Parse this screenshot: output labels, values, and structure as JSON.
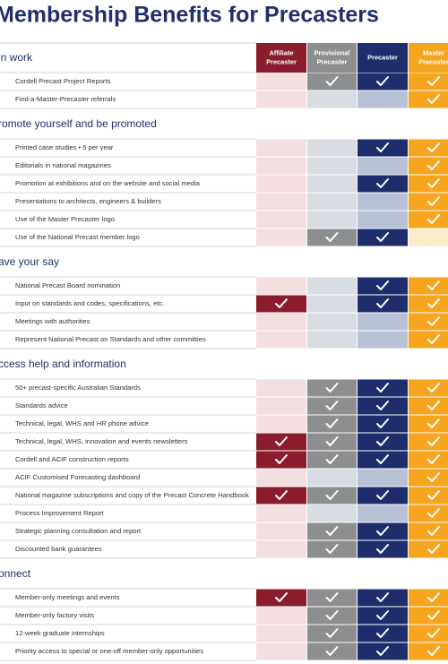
{
  "header": {
    "title": "Membership Benefits for Precasters"
  },
  "columns": [
    [
      "Affiliate",
      "Precaster"
    ],
    [
      "Provisional",
      "Precaster"
    ],
    [
      "Precaster"
    ],
    [
      "Master",
      "Precaster"
    ]
  ],
  "sections": [
    {
      "title": "in work",
      "rows": [
        {
          "label": "Cordell Precast Project Reports",
          "checks": [
            false,
            true,
            true,
            true
          ]
        },
        {
          "label": "Find-a-Master-Precaster referrals",
          "checks": [
            false,
            false,
            false,
            true
          ]
        }
      ]
    },
    {
      "title": "romote yourself and be promoted",
      "rows": [
        {
          "label": "Printed case studies • 5 per year",
          "checks": [
            false,
            false,
            true,
            true
          ]
        },
        {
          "label": "Editorials in national magazines",
          "checks": [
            false,
            false,
            false,
            true
          ]
        },
        {
          "label": "Promotion at exhibitions and on the website and social media",
          "checks": [
            false,
            false,
            true,
            true
          ]
        },
        {
          "label": "Presentations to architects, engineers & builders",
          "checks": [
            false,
            false,
            false,
            true
          ]
        },
        {
          "label": "Use of the Master Precaster logo",
          "checks": [
            false,
            false,
            false,
            true
          ]
        },
        {
          "label": "Use of the National Precast member logo",
          "checks": [
            false,
            true,
            true,
            false
          ]
        }
      ]
    },
    {
      "title": "ave your say",
      "rows": [
        {
          "label": "National Precast Board nomination",
          "checks": [
            false,
            false,
            true,
            true
          ]
        },
        {
          "label": "Input on standards and codes, specifications, etc.",
          "checks": [
            true,
            false,
            true,
            true
          ]
        },
        {
          "label": "Meetings with authorities",
          "checks": [
            false,
            false,
            false,
            true
          ]
        },
        {
          "label": "Represent National Precast on Standards and other committies",
          "checks": [
            false,
            false,
            false,
            true
          ]
        }
      ]
    },
    {
      "title": "ccess help and information",
      "rows": [
        {
          "label": "50+ precast-specific Australian Standards",
          "checks": [
            false,
            true,
            true,
            true
          ]
        },
        {
          "label": "Standards advice",
          "checks": [
            false,
            true,
            true,
            true
          ]
        },
        {
          "label": "Technical, legal, WHS and HR phone advice",
          "checks": [
            false,
            true,
            true,
            true
          ]
        },
        {
          "label": "Technical, legal, WHS, innovation and events newsletters",
          "checks": [
            true,
            true,
            true,
            true
          ]
        },
        {
          "label": "Cordell and ACIF construction reports",
          "checks": [
            true,
            true,
            true,
            true
          ]
        },
        {
          "label": "ACIF Customised Forecasting dashboard",
          "checks": [
            false,
            false,
            false,
            true
          ]
        },
        {
          "label": "National magazine subscriptions and copy of the Precast Concrete Handbook",
          "checks": [
            true,
            true,
            true,
            true
          ]
        },
        {
          "label": "Process Improvement Report",
          "checks": [
            false,
            false,
            false,
            true
          ]
        },
        {
          "label": "Strategic planning consultation and report",
          "checks": [
            false,
            true,
            true,
            true
          ]
        },
        {
          "label": "Discounted bank guarantees",
          "checks": [
            false,
            true,
            true,
            true
          ]
        }
      ]
    },
    {
      "title": "onnect",
      "rows": [
        {
          "label": "Member-only meetings and events",
          "checks": [
            true,
            true,
            true,
            true
          ]
        },
        {
          "label": "Member-only factory visits",
          "checks": [
            false,
            true,
            true,
            true
          ]
        },
        {
          "label": "12-week graduate internships",
          "checks": [
            false,
            true,
            true,
            true
          ]
        },
        {
          "label": "Priority access to special or one-off member-only opportunities",
          "checks": [
            false,
            true,
            true,
            true
          ]
        }
      ]
    }
  ]
}
